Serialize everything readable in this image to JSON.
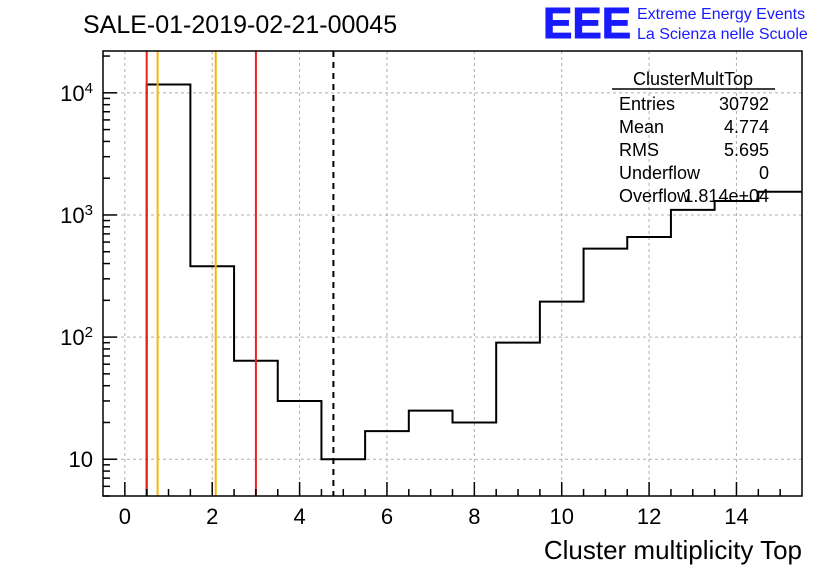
{
  "chart_title": "SALE-01-2019-02-21-00045",
  "logo": {
    "mark": "EEE",
    "line1": "Extreme Energy Events",
    "line2": "La Scienza nelle Scuole",
    "color": "#1a1aff"
  },
  "stats_box": {
    "title": "ClusterMultTop",
    "rows": [
      {
        "label": "Entries",
        "value": "30792"
      },
      {
        "label": "Mean",
        "value": "4.774"
      },
      {
        "label": "RMS",
        "value": "5.695"
      },
      {
        "label": "Underflow",
        "value": "0"
      },
      {
        "label": "Overflow",
        "value": "1.814e+04"
      }
    ]
  },
  "chart_data": {
    "type": "histogram",
    "title": "SALE-01-2019-02-21-00045",
    "xlabel": "Cluster multiplicity Top",
    "ylabel": "",
    "xlim": [
      -0.5,
      15.5
    ],
    "ylim": [
      5,
      22000
    ],
    "yscale": "log",
    "grid": true,
    "x_ticks": [
      0,
      2,
      4,
      6,
      8,
      10,
      12,
      14
    ],
    "y_ticks": [
      {
        "value": 10,
        "base": "10",
        "exp": ""
      },
      {
        "value": 100,
        "base": "10",
        "exp": "2"
      },
      {
        "value": 1000,
        "base": "10",
        "exp": "3"
      },
      {
        "value": 10000,
        "base": "10",
        "exp": "4"
      }
    ],
    "bins": [
      {
        "low": 0.5,
        "high": 1.5,
        "count": 11700
      },
      {
        "low": 1.5,
        "high": 2.5,
        "count": 380
      },
      {
        "low": 2.5,
        "high": 3.5,
        "count": 64
      },
      {
        "low": 3.5,
        "high": 4.5,
        "count": 30
      },
      {
        "low": 4.5,
        "high": 5.5,
        "count": 10
      },
      {
        "low": 5.5,
        "high": 6.5,
        "count": 17
      },
      {
        "low": 6.5,
        "high": 7.5,
        "count": 25
      },
      {
        "low": 7.5,
        "high": 8.5,
        "count": 20
      },
      {
        "low": 8.5,
        "high": 9.5,
        "count": 90
      },
      {
        "low": 9.5,
        "high": 10.5,
        "count": 195
      },
      {
        "low": 10.5,
        "high": 11.5,
        "count": 530
      },
      {
        "low": 11.5,
        "high": 12.5,
        "count": 660
      },
      {
        "low": 12.5,
        "high": 13.5,
        "count": 1100
      },
      {
        "low": 13.5,
        "high": 14.5,
        "count": 1300
      },
      {
        "low": 14.5,
        "high": 15.5,
        "count": 1550
      }
    ],
    "vertical_lines": [
      {
        "x": 0.5,
        "color": "#e8241c",
        "style": "solid"
      },
      {
        "x": 0.75,
        "color": "#f5b800",
        "style": "solid"
      },
      {
        "x": 2.08,
        "color": "#f5b800",
        "style": "solid"
      },
      {
        "x": 3.0,
        "color": "#e8241c",
        "style": "solid"
      },
      {
        "x": 4.774,
        "color": "#000000",
        "style": "dashed"
      }
    ]
  }
}
